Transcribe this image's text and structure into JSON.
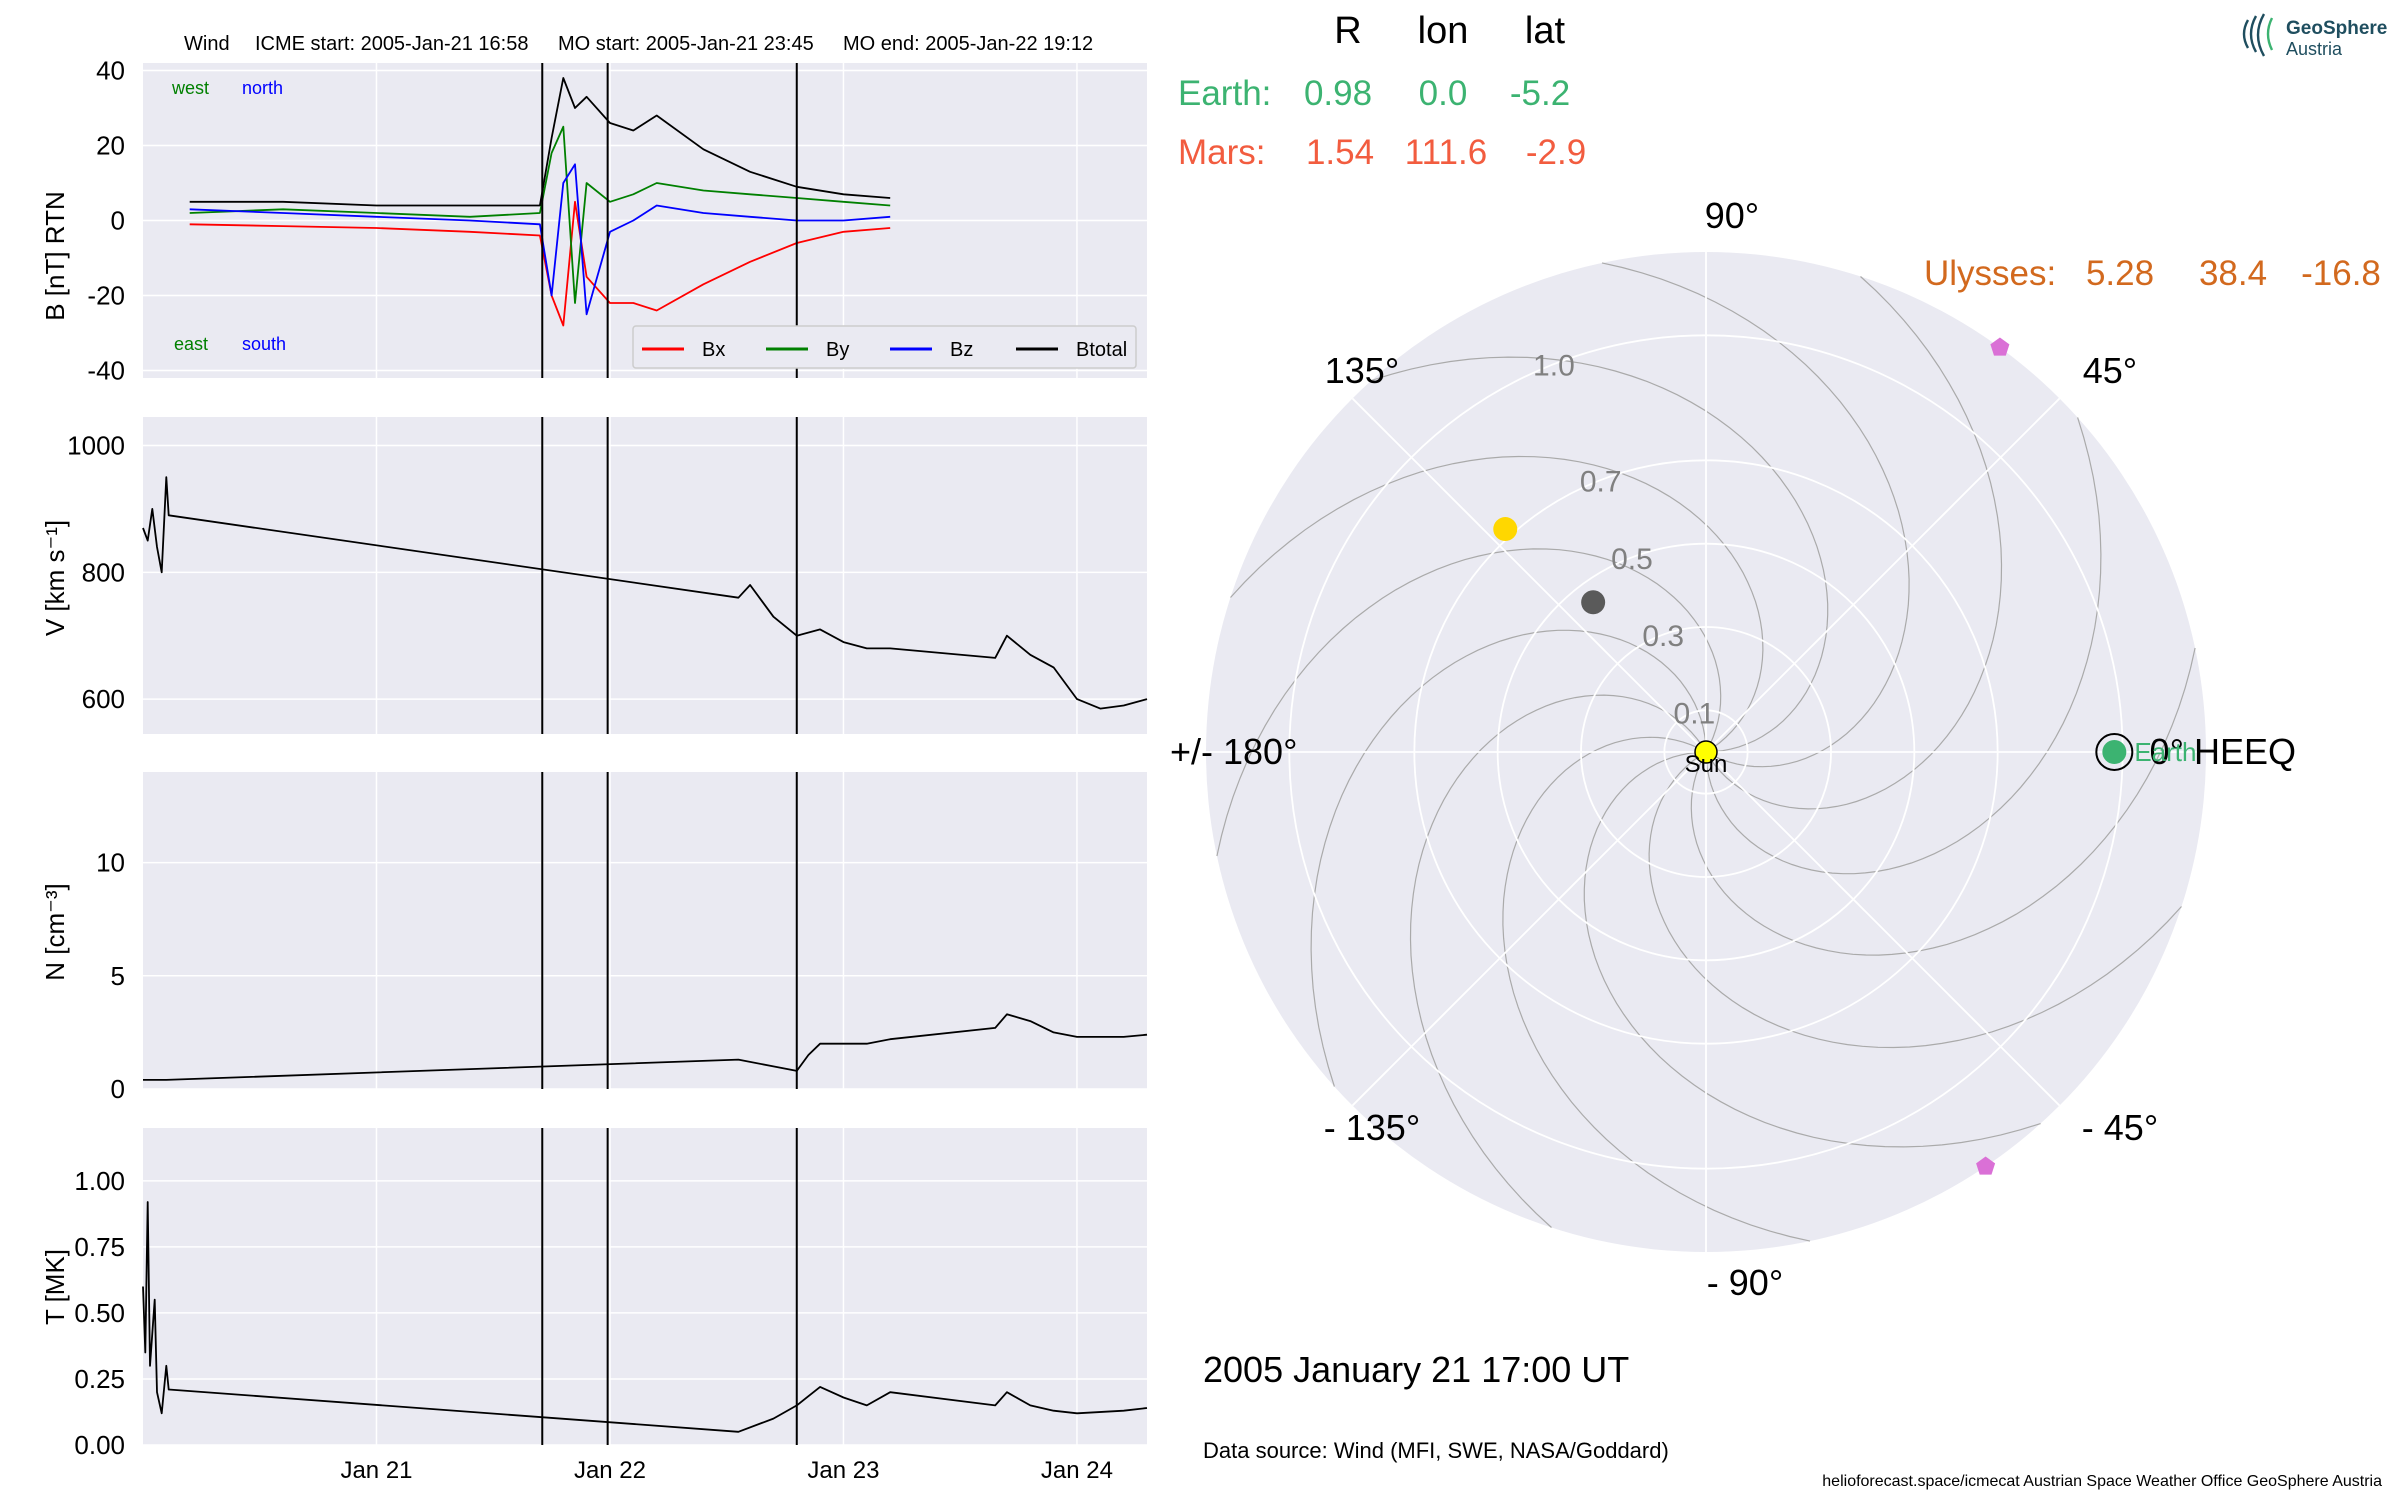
{
  "header": {
    "spacecraft": "Wind",
    "icme_start": "ICME start: 2005-Jan-21 16:58",
    "mo_start": "MO start: 2005-Jan-21 23:45",
    "mo_end": "MO end: 2005-Jan-22 19:12"
  },
  "positions_table": {
    "col_R": "R",
    "col_lon": "lon",
    "col_lat": "lat",
    "earth": {
      "label": "Earth:",
      "R": "0.98",
      "lon": "0.0",
      "lat": "-5.2",
      "color": "#3cb371"
    },
    "mars": {
      "label": "Mars:",
      "R": "1.54",
      "lon": "111.6",
      "lat": "-2.9",
      "color": "#f25c3f"
    },
    "ulysses": {
      "label": "Ulysses:",
      "R": "5.28",
      "lon": "38.4",
      "lat": "-16.8",
      "color": "#d2691e"
    }
  },
  "logo": {
    "line1": "GeoSphere",
    "line2": "Austria",
    "color": "#1f4e5f"
  },
  "timestamp": "2005 January 21  17:00 UT",
  "data_source": "Data source: Wind (MFI, SWE, NASA/Goddard)",
  "footer": "helioforecast.space/icmecat   Austrian Space Weather Office   GeoSphere Austria",
  "colors": {
    "bg": "#eaeaf2",
    "grid": "#ffffff",
    "bx": "#ff0000",
    "by": "#008000",
    "bz": "#0000ff",
    "bt": "#000000"
  },
  "chart_data": [
    {
      "type": "line",
      "ylabel": "B [nT] RTN",
      "ylim": [
        -42,
        42
      ],
      "yticks": [
        "40",
        "20",
        "0",
        "-20",
        "-40"
      ],
      "corner_labels": {
        "top_left": "west",
        "top_right": "north",
        "bottom_left": "east",
        "bottom_right": "south"
      },
      "legend": [
        "Bx",
        "By",
        "Bz",
        "Btotal"
      ],
      "legend_placement": "lower-right",
      "series": [
        {
          "name": "Bx",
          "points": [
            [
              20.2,
              -1
            ],
            [
              20.6,
              -1.5
            ],
            [
              21.0,
              -2
            ],
            [
              21.4,
              -3
            ],
            [
              21.7,
              -4
            ],
            [
              21.75,
              -20
            ],
            [
              21.8,
              -28
            ],
            [
              21.85,
              5
            ],
            [
              21.9,
              -15
            ],
            [
              22.0,
              -22
            ],
            [
              22.1,
              -22
            ],
            [
              22.2,
              -24
            ],
            [
              22.4,
              -17
            ],
            [
              22.6,
              -11
            ],
            [
              22.8,
              -6
            ],
            [
              23.0,
              -3
            ],
            [
              23.2,
              -2
            ]
          ]
        },
        {
          "name": "By",
          "points": [
            [
              20.2,
              2
            ],
            [
              20.6,
              3
            ],
            [
              21.0,
              2
            ],
            [
              21.4,
              1
            ],
            [
              21.7,
              2
            ],
            [
              21.75,
              18
            ],
            [
              21.8,
              25
            ],
            [
              21.85,
              -22
            ],
            [
              21.9,
              10
            ],
            [
              22.0,
              5
            ],
            [
              22.1,
              7
            ],
            [
              22.2,
              10
            ],
            [
              22.4,
              8
            ],
            [
              22.6,
              7
            ],
            [
              22.8,
              6
            ],
            [
              23.0,
              5
            ],
            [
              23.2,
              4
            ]
          ]
        },
        {
          "name": "Bz",
          "points": [
            [
              20.2,
              3
            ],
            [
              20.6,
              2
            ],
            [
              21.0,
              1
            ],
            [
              21.4,
              0
            ],
            [
              21.7,
              -1
            ],
            [
              21.75,
              -20
            ],
            [
              21.8,
              10
            ],
            [
              21.85,
              15
            ],
            [
              21.9,
              -25
            ],
            [
              22.0,
              -3
            ],
            [
              22.1,
              0
            ],
            [
              22.2,
              4
            ],
            [
              22.4,
              2
            ],
            [
              22.6,
              1
            ],
            [
              22.8,
              0
            ],
            [
              23.0,
              0
            ],
            [
              23.2,
              1
            ]
          ]
        },
        {
          "name": "Btotal",
          "points": [
            [
              20.2,
              5
            ],
            [
              20.6,
              5
            ],
            [
              21.0,
              4
            ],
            [
              21.4,
              4
            ],
            [
              21.7,
              4
            ],
            [
              21.75,
              22
            ],
            [
              21.8,
              38
            ],
            [
              21.85,
              30
            ],
            [
              21.9,
              33
            ],
            [
              22.0,
              26
            ],
            [
              22.1,
              24
            ],
            [
              22.2,
              28
            ],
            [
              22.4,
              19
            ],
            [
              22.6,
              13
            ],
            [
              22.8,
              9
            ],
            [
              23.0,
              7
            ],
            [
              23.2,
              6
            ]
          ]
        }
      ],
      "gap": [
        23.2,
        23.65
      ],
      "events": [
        21.71,
        21.99,
        22.8
      ]
    },
    {
      "type": "line",
      "ylabel": "V [km s⁻¹]",
      "ylim": [
        545,
        1045
      ],
      "yticks": [
        "1000",
        "800",
        "600"
      ],
      "series": [
        {
          "name": "",
          "points": [
            [
              20.0,
              870
            ],
            [
              20.02,
              850
            ],
            [
              20.04,
              900
            ],
            [
              20.06,
              840
            ],
            [
              20.08,
              800
            ],
            [
              20.1,
              950
            ],
            [
              20.11,
              890
            ],
            [
              22.55,
              760
            ],
            [
              22.6,
              780
            ],
            [
              22.7,
              730
            ],
            [
              22.8,
              700
            ],
            [
              22.9,
              710
            ],
            [
              23.0,
              690
            ],
            [
              23.1,
              680
            ],
            [
              23.2,
              680
            ],
            [
              23.65,
              665
            ],
            [
              23.7,
              700
            ],
            [
              23.8,
              670
            ],
            [
              23.9,
              650
            ],
            [
              24.0,
              600
            ],
            [
              24.1,
              585
            ],
            [
              24.2,
              590
            ],
            [
              24.3,
              600
            ]
          ]
        }
      ],
      "events": [
        21.71,
        21.99,
        22.8
      ]
    },
    {
      "type": "line",
      "ylabel": "N [cm⁻³]",
      "ylim": [
        0,
        14
      ],
      "yticks": [
        "10",
        "5",
        "0"
      ],
      "series": [
        {
          "name": "",
          "points": [
            [
              20.0,
              0.4
            ],
            [
              20.1,
              0.4
            ],
            [
              22.55,
              1.3
            ],
            [
              22.7,
              1.0
            ],
            [
              22.8,
              0.8
            ],
            [
              22.85,
              1.5
            ],
            [
              22.9,
              2.0
            ],
            [
              23.0,
              2.0
            ],
            [
              23.1,
              2.0
            ],
            [
              23.2,
              2.2
            ],
            [
              23.65,
              2.7
            ],
            [
              23.7,
              3.3
            ],
            [
              23.8,
              3.0
            ],
            [
              23.9,
              2.5
            ],
            [
              24.0,
              2.3
            ],
            [
              24.2,
              2.3
            ],
            [
              24.3,
              2.4
            ]
          ]
        }
      ],
      "events": [
        21.71,
        21.99,
        22.8
      ]
    },
    {
      "type": "line",
      "ylabel": "T [MK]",
      "ylim": [
        0,
        1.2
      ],
      "yticks": [
        "1.00",
        "0.75",
        "0.50",
        "0.25",
        "0.00"
      ],
      "series": [
        {
          "name": "",
          "points": [
            [
              20.0,
              0.6
            ],
            [
              20.01,
              0.35
            ],
            [
              20.02,
              0.92
            ],
            [
              20.03,
              0.3
            ],
            [
              20.05,
              0.55
            ],
            [
              20.06,
              0.2
            ],
            [
              20.08,
              0.12
            ],
            [
              20.1,
              0.3
            ],
            [
              20.11,
              0.21
            ],
            [
              22.55,
              0.05
            ],
            [
              22.7,
              0.1
            ],
            [
              22.8,
              0.15
            ],
            [
              22.9,
              0.22
            ],
            [
              23.0,
              0.18
            ],
            [
              23.1,
              0.15
            ],
            [
              23.2,
              0.2
            ],
            [
              23.65,
              0.15
            ],
            [
              23.7,
              0.2
            ],
            [
              23.8,
              0.15
            ],
            [
              23.9,
              0.13
            ],
            [
              24.0,
              0.12
            ],
            [
              24.2,
              0.13
            ],
            [
              24.3,
              0.14
            ]
          ]
        }
      ],
      "events": [
        21.71,
        21.99,
        22.8
      ]
    },
    {
      "type": "polar",
      "title": "",
      "radial_ticks": [
        "0.1",
        "0.3",
        "0.5",
        "0.7",
        "1.0"
      ],
      "angle_labels": {
        "a0": "0° HEEQ",
        "a45": "45°",
        "a90": "90°",
        "a135": "135°",
        "a180": "+/- 180°",
        "am135": "- 135°",
        "am90": "- 90°",
        "am45": "- 45°"
      },
      "bodies": [
        {
          "name": "Sun",
          "r": 0.0,
          "lon": 0,
          "color": "#ffff00",
          "label": "Sun"
        },
        {
          "name": "Earth",
          "r": 0.98,
          "lon": 0.0,
          "color": "#3cb371",
          "label": "Earth"
        },
        {
          "name": "Mercury",
          "r": 0.45,
          "lon": 127,
          "color": "#5a5a5a"
        },
        {
          "name": "Venus",
          "r": 0.72,
          "lon": 132,
          "color": "#ffd700"
        },
        {
          "name": "Spacecraft1",
          "r": 1.2,
          "lon": 54,
          "color": "#da70d6"
        },
        {
          "name": "Spacecraft2",
          "r": 1.2,
          "lon": -56,
          "color": "#da70d6"
        }
      ]
    }
  ],
  "xaxis": {
    "ticks": [
      "Jan 21",
      "Jan 22",
      "Jan 23",
      "Jan 24"
    ],
    "tick_values": [
      21,
      22,
      23,
      24
    ],
    "xlim": [
      20.0,
      24.3
    ]
  }
}
